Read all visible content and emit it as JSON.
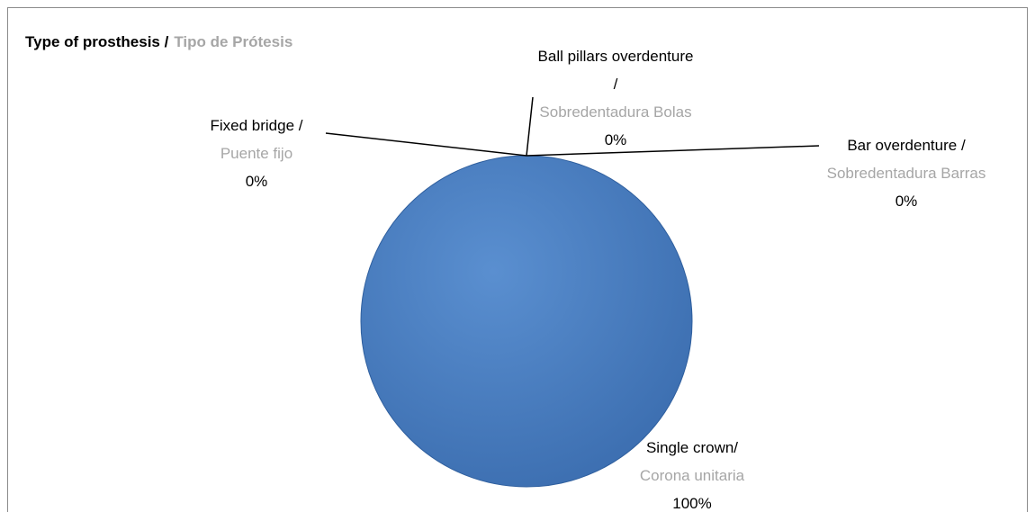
{
  "chart_data": {
    "type": "pie",
    "title": "Type of prosthesis /",
    "title_es": "Tipo de Prótesis",
    "categories": [
      "Fixed bridge /",
      "Ball pillars overdenture /",
      "Bar overdenture /",
      "Single crown/"
    ],
    "categories_es": [
      "Puente fijo",
      "Sobredentadura Bolas",
      "Sobredentadura Barras",
      "Corona unitaria"
    ],
    "values": [
      0,
      0,
      0,
      100
    ],
    "value_labels": [
      "0%",
      "0%",
      "0%",
      "100%"
    ],
    "color": "#4a7ebb"
  }
}
